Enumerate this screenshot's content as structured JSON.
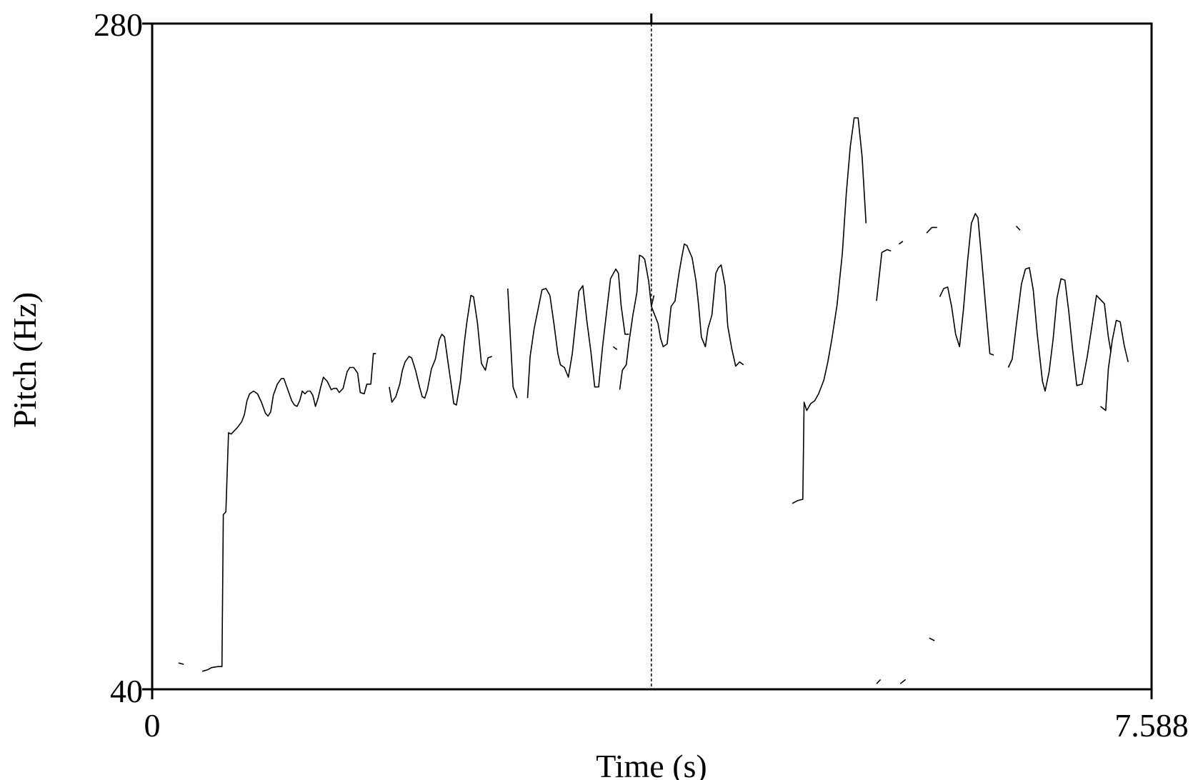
{
  "chart_data": {
    "type": "line",
    "xlabel": "Time (s)",
    "ylabel": "Pitch (Hz)",
    "xlim": [
      0,
      7.588
    ],
    "ylim": [
      40,
      280
    ],
    "x_tick_labels": [
      "0",
      "7.588"
    ],
    "y_tick_labels": [
      "40",
      "280"
    ],
    "grid": false,
    "cursor_time": 3.79,
    "colors": {
      "line": "#000000",
      "frame": "#000000"
    },
    "series": [
      {
        "points": [
          [
            0.2,
            49.5
          ],
          [
            0.24,
            49.0
          ]
        ]
      },
      {
        "points": [
          [
            0.38,
            46.5
          ],
          [
            0.42,
            47.0
          ],
          [
            0.45,
            47.8
          ],
          [
            0.5,
            48.2
          ],
          [
            0.53,
            48.2
          ],
          [
            0.54,
            103.0
          ],
          [
            0.56,
            104.0
          ],
          [
            0.58,
            132.5
          ],
          [
            0.6,
            132.0
          ],
          [
            0.62,
            133.0
          ],
          [
            0.65,
            134.5
          ],
          [
            0.68,
            136.5
          ],
          [
            0.7,
            139.0
          ],
          [
            0.72,
            144.0
          ],
          [
            0.74,
            146.5
          ],
          [
            0.77,
            147.5
          ],
          [
            0.8,
            146.5
          ],
          [
            0.83,
            143.5
          ],
          [
            0.86,
            139.5
          ],
          [
            0.88,
            138.5
          ],
          [
            0.9,
            140.0
          ],
          [
            0.92,
            146.0
          ],
          [
            0.95,
            150.0
          ],
          [
            0.98,
            152.0
          ],
          [
            1.0,
            152.0
          ],
          [
            1.03,
            148.0
          ],
          [
            1.06,
            144.0
          ],
          [
            1.08,
            142.5
          ],
          [
            1.1,
            142.0
          ],
          [
            1.12,
            144.0
          ],
          [
            1.14,
            147.5
          ],
          [
            1.16,
            146.5
          ],
          [
            1.18,
            147.5
          ],
          [
            1.2,
            147.5
          ],
          [
            1.22,
            146.0
          ],
          [
            1.24,
            142.0
          ],
          [
            1.26,
            145.0
          ],
          [
            1.28,
            149.0
          ],
          [
            1.3,
            152.5
          ],
          [
            1.33,
            151.0
          ],
          [
            1.36,
            148.0
          ],
          [
            1.38,
            148.5
          ],
          [
            1.4,
            148.5
          ],
          [
            1.42,
            147.0
          ],
          [
            1.45,
            148.5
          ],
          [
            1.48,
            154.5
          ],
          [
            1.5,
            156.0
          ],
          [
            1.53,
            156.0
          ],
          [
            1.56,
            154.0
          ],
          [
            1.58,
            147.0
          ],
          [
            1.61,
            146.5
          ],
          [
            1.63,
            150.0
          ],
          [
            1.66,
            150.0
          ],
          [
            1.68,
            161.0
          ],
          [
            1.7,
            161.0
          ]
        ]
      },
      {
        "points": [
          [
            1.8,
            149.0
          ],
          [
            1.82,
            143.5
          ],
          [
            1.85,
            145.5
          ],
          [
            1.88,
            150.0
          ],
          [
            1.9,
            155.0
          ],
          [
            1.92,
            158.0
          ],
          [
            1.95,
            160.0
          ],
          [
            1.97,
            159.5
          ],
          [
            2.0,
            155.0
          ],
          [
            2.03,
            149.0
          ],
          [
            2.05,
            145.5
          ],
          [
            2.07,
            145.0
          ],
          [
            2.09,
            148.0
          ],
          [
            2.12,
            155.5
          ],
          [
            2.15,
            159.0
          ],
          [
            2.18,
            166.0
          ],
          [
            2.2,
            168.0
          ],
          [
            2.22,
            167.0
          ],
          [
            2.24,
            160.0
          ],
          [
            2.27,
            150.0
          ],
          [
            2.29,
            143.0
          ],
          [
            2.31,
            142.5
          ],
          [
            2.34,
            151.0
          ],
          [
            2.37,
            165.0
          ],
          [
            2.39,
            172.5
          ],
          [
            2.42,
            182.0
          ],
          [
            2.44,
            181.5
          ],
          [
            2.47,
            172.0
          ],
          [
            2.5,
            157.5
          ],
          [
            2.53,
            155.0
          ],
          [
            2.55,
            159.5
          ],
          [
            2.58,
            160.0
          ]
        ]
      },
      {
        "points": [
          [
            2.7,
            184.5
          ],
          [
            2.72,
            166.5
          ],
          [
            2.74,
            149.0
          ],
          [
            2.77,
            145.0
          ]
        ]
      },
      {
        "points": [
          [
            2.85,
            145.0
          ],
          [
            2.87,
            160.0
          ],
          [
            2.9,
            170.0
          ],
          [
            2.93,
            177.0
          ],
          [
            2.96,
            184.0
          ],
          [
            2.99,
            184.5
          ],
          [
            3.02,
            182.0
          ],
          [
            3.05,
            172.0
          ],
          [
            3.08,
            161.0
          ],
          [
            3.1,
            157.0
          ],
          [
            3.13,
            156.0
          ],
          [
            3.16,
            152.5
          ],
          [
            3.19,
            161.0
          ],
          [
            3.22,
            174.5
          ],
          [
            3.24,
            183.5
          ],
          [
            3.27,
            185.5
          ],
          [
            3.3,
            173.0
          ],
          [
            3.33,
            162.0
          ],
          [
            3.36,
            149.0
          ],
          [
            3.39,
            149.0
          ],
          [
            3.42,
            163.5
          ],
          [
            3.45,
            176.0
          ],
          [
            3.48,
            188.0
          ],
          [
            3.52,
            191.5
          ],
          [
            3.54,
            190.0
          ],
          [
            3.56,
            178.5
          ],
          [
            3.59,
            168.0
          ],
          [
            3.62,
            168.0
          ]
        ]
      },
      {
        "points": [
          [
            3.55,
            148.0
          ],
          [
            3.57,
            155.0
          ],
          [
            3.6,
            157.0
          ],
          [
            3.62,
            165.0
          ],
          [
            3.65,
            175.0
          ],
          [
            3.68,
            183.0
          ],
          [
            3.7,
            196.5
          ],
          [
            3.72,
            196.0
          ],
          [
            3.74,
            195.0
          ],
          [
            3.77,
            187.0
          ],
          [
            3.79,
            178.0
          ],
          [
            3.81,
            182.0
          ]
        ]
      },
      {
        "points": [
          [
            3.5,
            163.5
          ],
          [
            3.53,
            162.5
          ]
        ]
      },
      {
        "points": [
          [
            3.79,
            178.0
          ],
          [
            3.84,
            172.0
          ],
          [
            3.86,
            166.5
          ],
          [
            3.88,
            163.5
          ],
          [
            3.91,
            164.5
          ],
          [
            3.94,
            178.0
          ],
          [
            3.97,
            180.0
          ],
          [
            4.0,
            190.0
          ],
          [
            4.02,
            195.5
          ],
          [
            4.04,
            200.5
          ],
          [
            4.06,
            200.0
          ],
          [
            4.1,
            195.5
          ],
          [
            4.13,
            187.0
          ],
          [
            4.15,
            178.0
          ],
          [
            4.17,
            167.0
          ],
          [
            4.2,
            163.5
          ],
          [
            4.22,
            170.0
          ],
          [
            4.25,
            175.0
          ],
          [
            4.28,
            190.0
          ],
          [
            4.3,
            192.0
          ],
          [
            4.32,
            193.0
          ],
          [
            4.35,
            185.5
          ],
          [
            4.37,
            171.0
          ],
          [
            4.4,
            163.0
          ],
          [
            4.43,
            156.5
          ],
          [
            4.46,
            158.0
          ],
          [
            4.49,
            157.0
          ]
        ]
      },
      {
        "points": [
          [
            4.86,
            107.0
          ],
          [
            4.9,
            108.0
          ],
          [
            4.94,
            108.5
          ],
          [
            4.95,
            143.5
          ],
          [
            4.97,
            140.5
          ],
          [
            5.0,
            143.0
          ],
          [
            5.03,
            144.0
          ],
          [
            5.06,
            146.5
          ],
          [
            5.1,
            151.5
          ],
          [
            5.13,
            158.0
          ],
          [
            5.16,
            166.0
          ],
          [
            5.2,
            178.5
          ],
          [
            5.24,
            197.0
          ],
          [
            5.27,
            218.5
          ],
          [
            5.3,
            235.5
          ],
          [
            5.33,
            246.0
          ],
          [
            5.36,
            246.0
          ],
          [
            5.39,
            232.0
          ],
          [
            5.42,
            208.0
          ]
        ]
      },
      {
        "points": [
          [
            5.5,
            180.0
          ],
          [
            5.54,
            197.5
          ],
          [
            5.58,
            198.5
          ],
          [
            5.61,
            198.0
          ]
        ]
      },
      {
        "points": [
          [
            5.67,
            200.5
          ],
          [
            5.7,
            201.5
          ]
        ]
      },
      {
        "points": [
          [
            5.88,
            204.5
          ],
          [
            5.92,
            206.5
          ],
          [
            5.96,
            206.5
          ]
        ]
      },
      {
        "points": [
          [
            5.9,
            58.5
          ],
          [
            5.94,
            57.5
          ]
        ]
      },
      {
        "points": [
          [
            5.5,
            42.0
          ],
          [
            5.53,
            43.5
          ]
        ]
      },
      {
        "points": [
          [
            5.68,
            42.0
          ],
          [
            5.72,
            43.5
          ]
        ]
      },
      {
        "points": [
          [
            5.98,
            181.5
          ],
          [
            6.01,
            184.5
          ],
          [
            6.04,
            185.0
          ],
          [
            6.07,
            178.0
          ],
          [
            6.1,
            168.0
          ],
          [
            6.13,
            163.5
          ],
          [
            6.16,
            177.0
          ],
          [
            6.19,
            194.0
          ],
          [
            6.22,
            208.0
          ],
          [
            6.25,
            211.5
          ],
          [
            6.27,
            210.0
          ],
          [
            6.3,
            194.0
          ],
          [
            6.33,
            177.0
          ],
          [
            6.36,
            161.0
          ],
          [
            6.39,
            160.5
          ]
        ]
      },
      {
        "points": [
          [
            6.56,
            207.0
          ],
          [
            6.59,
            205.5
          ]
        ]
      },
      {
        "points": [
          [
            6.5,
            156.0
          ],
          [
            6.53,
            159.0
          ],
          [
            6.56,
            171.0
          ],
          [
            6.6,
            186.0
          ],
          [
            6.63,
            191.5
          ],
          [
            6.66,
            192.0
          ],
          [
            6.69,
            184.0
          ],
          [
            6.72,
            168.0
          ],
          [
            6.76,
            151.0
          ],
          [
            6.78,
            147.5
          ],
          [
            6.81,
            154.5
          ],
          [
            6.84,
            166.0
          ],
          [
            6.87,
            181.0
          ],
          [
            6.9,
            188.0
          ],
          [
            6.93,
            187.5
          ],
          [
            6.96,
            176.0
          ],
          [
            6.99,
            162.0
          ],
          [
            7.02,
            149.5
          ],
          [
            7.06,
            150.0
          ],
          [
            7.1,
            160.0
          ],
          [
            7.14,
            172.5
          ],
          [
            7.17,
            182.0
          ],
          [
            7.2,
            180.5
          ],
          [
            7.23,
            179.0
          ],
          [
            7.26,
            167.0
          ],
          [
            7.28,
            161.5
          ]
        ]
      },
      {
        "points": [
          [
            7.2,
            142.0
          ],
          [
            7.24,
            140.5
          ],
          [
            7.26,
            155.5
          ],
          [
            7.29,
            166.0
          ],
          [
            7.32,
            173.0
          ],
          [
            7.35,
            172.5
          ],
          [
            7.38,
            164.0
          ],
          [
            7.41,
            158.0
          ]
        ]
      }
    ]
  }
}
